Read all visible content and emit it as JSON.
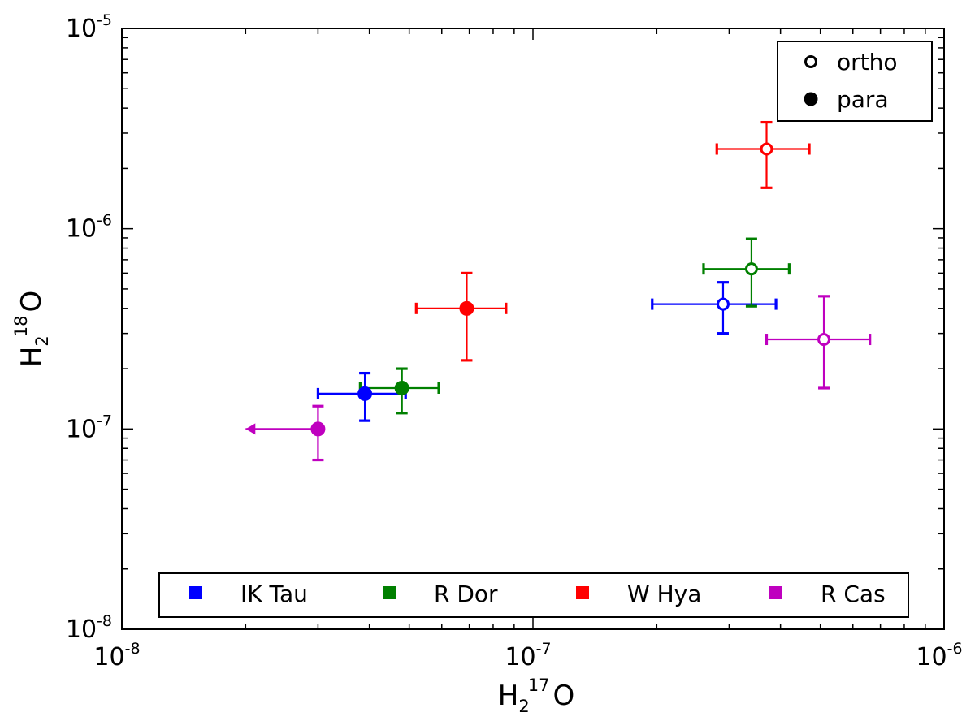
{
  "chart_data": {
    "type": "scatter",
    "scale": {
      "x": "log",
      "y": "log"
    },
    "xlim": [
      1e-08,
      1e-06
    ],
    "ylim": [
      1e-08,
      1e-05
    ],
    "xlabel": {
      "base": "H",
      "sub": "2",
      "sup": "17",
      "rest": "O"
    },
    "ylabel": {
      "base": "H",
      "sub": "2",
      "sup": "18",
      "rest": "O"
    },
    "x_ticks": [
      {
        "base": "10",
        "exp": "-8",
        "value": 1e-08
      },
      {
        "base": "10",
        "exp": "-7",
        "value": 1e-07
      },
      {
        "base": "10",
        "exp": "-6",
        "value": 1e-06
      }
    ],
    "y_ticks": [
      {
        "base": "10",
        "exp": "-8",
        "value": 1e-08
      },
      {
        "base": "10",
        "exp": "-7",
        "value": 1e-07
      },
      {
        "base": "10",
        "exp": "-6",
        "value": 1e-06
      },
      {
        "base": "10",
        "exp": "-5",
        "value": 1e-05
      }
    ],
    "marker_legend": {
      "position": "top-right",
      "items": [
        {
          "label": "ortho",
          "style": "open"
        },
        {
          "label": "para",
          "style": "filled"
        }
      ]
    },
    "series_legend_position": "bottom",
    "series": [
      {
        "name": "IK Tau",
        "color": "#0000ff",
        "points": [
          {
            "kind": "para",
            "x": 3.9e-08,
            "y": 1.5e-07,
            "xerr": [
              3e-08,
              4.9e-08
            ],
            "yerr": [
              1.1e-07,
              1.9e-07
            ]
          },
          {
            "kind": "ortho",
            "x": 2.9e-07,
            "y": 4.2e-07,
            "xerr": [
              1.95e-07,
              3.9e-07
            ],
            "yerr": [
              3e-07,
              5.4e-07
            ]
          }
        ]
      },
      {
        "name": "R Dor",
        "color": "#008000",
        "points": [
          {
            "kind": "para",
            "x": 4.8e-08,
            "y": 1.6e-07,
            "xerr": [
              3.8e-08,
              5.9e-08
            ],
            "yerr": [
              1.2e-07,
              2e-07
            ]
          },
          {
            "kind": "ortho",
            "x": 3.4e-07,
            "y": 6.3e-07,
            "xerr": [
              2.6e-07,
              4.2e-07
            ],
            "yerr": [
              4.1e-07,
              8.9e-07
            ]
          }
        ]
      },
      {
        "name": "W Hya",
        "color": "#ff0000",
        "points": [
          {
            "kind": "para",
            "x": 6.9e-08,
            "y": 4e-07,
            "xerr": [
              5.2e-08,
              8.6e-08
            ],
            "yerr": [
              2.2e-07,
              6e-07
            ]
          },
          {
            "kind": "ortho",
            "x": 3.7e-07,
            "y": 2.5e-06,
            "xerr": [
              2.8e-07,
              4.7e-07
            ],
            "yerr": [
              1.6e-06,
              3.4e-06
            ]
          }
        ]
      },
      {
        "name": "R Cas",
        "color": "#bf00bf",
        "points": [
          {
            "kind": "para",
            "x": 3e-08,
            "y": 1e-07,
            "xerr": [
              3e-08,
              3e-08
            ],
            "yerr": [
              7e-08,
              1.3e-07
            ],
            "upper_limit_to": 2e-08
          },
          {
            "kind": "ortho",
            "x": 5.1e-07,
            "y": 2.8e-07,
            "xerr": [
              3.7e-07,
              6.6e-07
            ],
            "yerr": [
              1.6e-07,
              4.6e-07
            ]
          }
        ]
      }
    ]
  }
}
